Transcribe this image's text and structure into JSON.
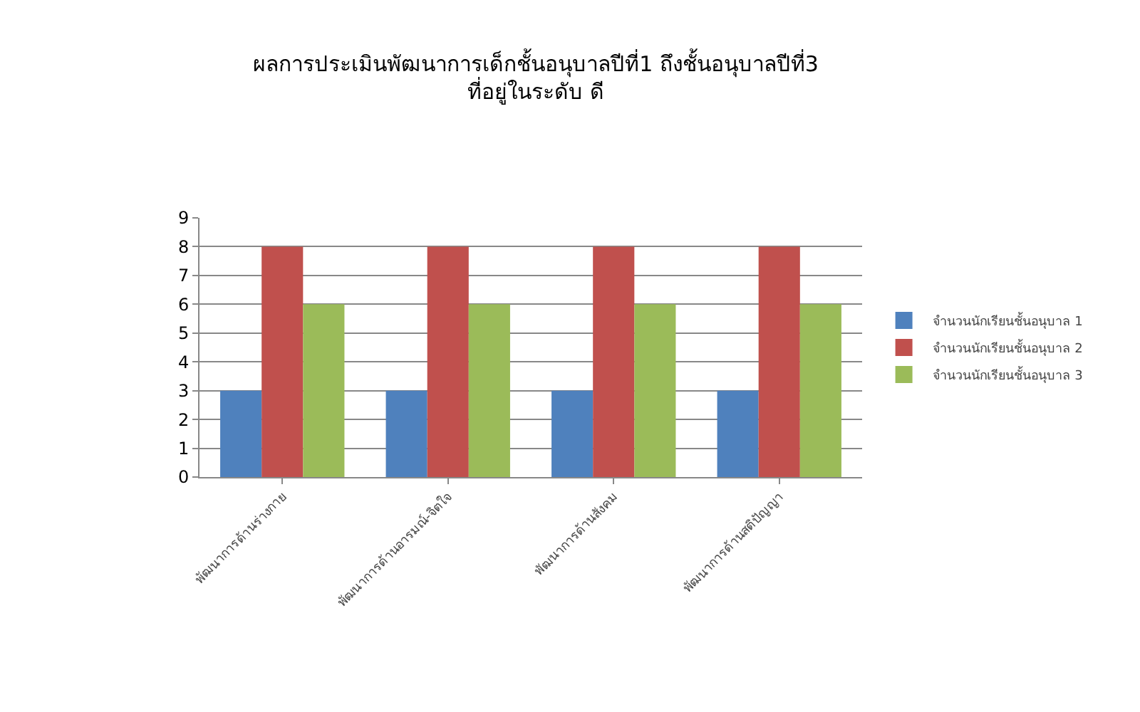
{
  "chart_data": {
    "type": "bar",
    "title": "ผลการประเมินพัฒนาการเด็กชั้นอนุบาลปีที่1 ถึงชั้นอนุบาลปีที่3\nที่อยู่ในระดับ ดี",
    "categories": [
      "พัฒนาการด้านร่างกาย",
      "พัฒนาการด้านอารมณ์-จิตใจ",
      "พัฒนาการด้านสังคม",
      "พัฒนาการด้านสติปัญญา"
    ],
    "series": [
      {
        "name": "จำนวนนักเรียนชั้นอนุบาล 1",
        "color": "#4f81bd",
        "values": [
          3,
          3,
          3,
          3
        ]
      },
      {
        "name": "จำนวนนักเรียนชั้นอนุบาล 2",
        "color": "#c0504d",
        "values": [
          8,
          8,
          8,
          8
        ]
      },
      {
        "name": "จำนวนนักเรียนชั้นอนุบาล 3",
        "color": "#9bbb59",
        "values": [
          6,
          6,
          6,
          6
        ]
      }
    ],
    "ylim": [
      0,
      9
    ],
    "yticks": [
      0,
      1,
      2,
      3,
      4,
      5,
      6,
      7,
      8,
      9
    ],
    "grid": "y",
    "legend": "right"
  }
}
